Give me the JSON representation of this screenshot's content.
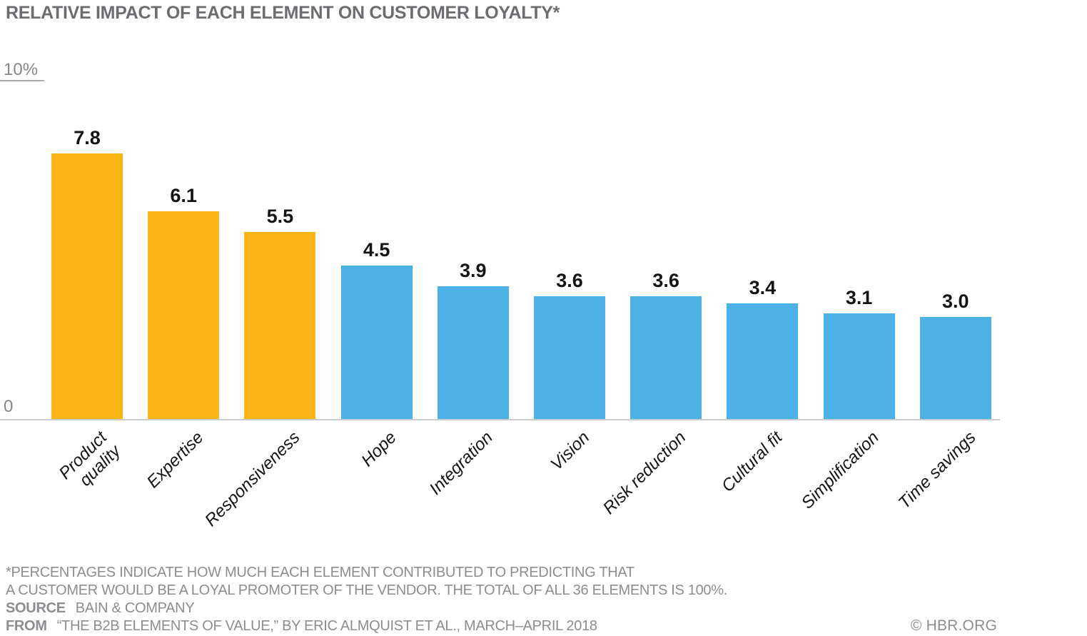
{
  "chart_data": {
    "type": "bar",
    "title": "RELATIVE IMPACT OF EACH ELEMENT ON CUSTOMER LOYALTY*",
    "categories": [
      "Product\nquality",
      "Expertise",
      "Responsiveness",
      "Hope",
      "Integration",
      "Vision",
      "Risk reduction",
      "Cultural fit",
      "Simplification",
      "Time savings"
    ],
    "values": [
      7.8,
      6.1,
      5.5,
      4.5,
      3.9,
      3.6,
      3.6,
      3.4,
      3.1,
      3.0
    ],
    "value_labels": [
      "7.8",
      "6.1",
      "5.5",
      "4.5",
      "3.9",
      "3.6",
      "3.6",
      "3.4",
      "3.1",
      "3.0"
    ],
    "bar_colors": [
      "#FBB516",
      "#FBB516",
      "#FBB516",
      "#4CB1E4",
      "#4CB1E4",
      "#4CB1E4",
      "#4CB1E4",
      "#4CB1E4",
      "#4CB1E4",
      "#4CB1E4"
    ],
    "highlight_color": "#FBB516",
    "default_color": "#4CB1E4",
    "xlabel": "",
    "ylabel": "",
    "ylim": [
      0,
      10
    ],
    "y_axis_top_label": "10%",
    "y_axis_bottom_label": "0",
    "grid": false,
    "legend_position": "none",
    "x_tick_rotation_deg": 45
  },
  "footer": {
    "footnote_line1": "*PERCENTAGES INDICATE HOW MUCH EACH ELEMENT CONTRIBUTED TO PREDICTING THAT",
    "footnote_line2": "A CUSTOMER WOULD BE A LOYAL PROMOTER OF THE VENDOR. THE TOTAL OF ALL 36 ELEMENTS IS 100%.",
    "source_label": "SOURCE",
    "source_value": "BAIN & COMPANY",
    "from_label": "FROM",
    "from_value": "“THE B2B ELEMENTS OF VALUE,” BY ERIC ALMQUIST ET AL., MARCH–APRIL 2018",
    "copyright": "© HBR.ORG"
  }
}
